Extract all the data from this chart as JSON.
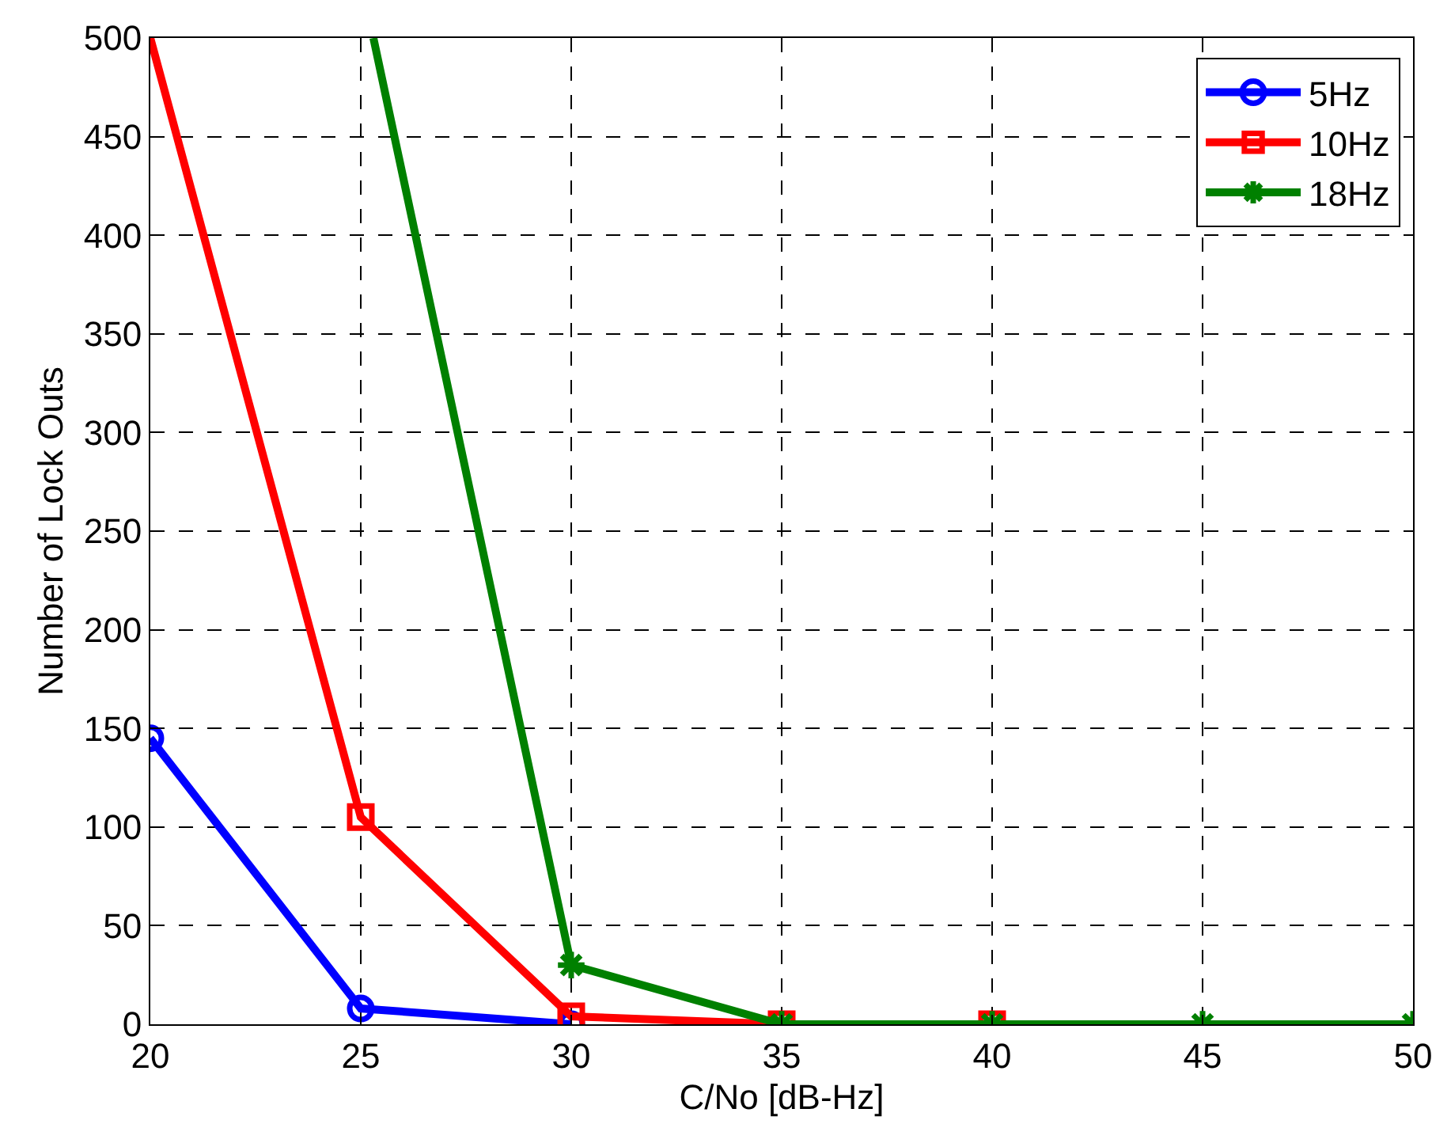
{
  "chart_data": {
    "type": "line",
    "xlabel": "C/No [dB-Hz]",
    "ylabel": "Number of Lock Outs",
    "xlim": [
      20,
      50
    ],
    "xticks": [
      20,
      25,
      30,
      35,
      40,
      45,
      50
    ],
    "ylim": [
      0,
      500
    ],
    "yticks": [
      0,
      50,
      100,
      150,
      200,
      250,
      300,
      350,
      400,
      450,
      500
    ],
    "grid": true,
    "legend": "top right",
    "line_style": "solid",
    "series": [
      {
        "name": "5Hz",
        "color": "#0000ff",
        "marker": "circle",
        "x": [
          20,
          25,
          30
        ],
        "values": [
          145,
          8,
          0
        ]
      },
      {
        "name": "10Hz",
        "color": "#ff0000",
        "marker": "square",
        "x": [
          20,
          25,
          30,
          35,
          40
        ],
        "values": [
          500,
          105,
          4,
          0,
          0
        ]
      },
      {
        "name": "18Hz",
        "color": "#008000",
        "marker": "cross",
        "x": [
          25.3,
          30,
          35,
          40,
          45,
          50
        ],
        "values": [
          500,
          30,
          0,
          0,
          0,
          0
        ]
      }
    ]
  }
}
